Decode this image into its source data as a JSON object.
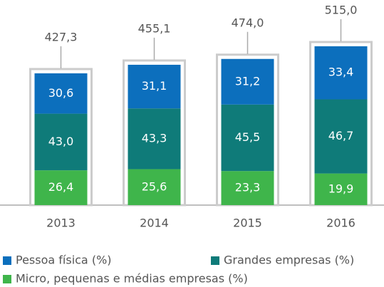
{
  "chart_data": {
    "type": "stacked-percent-bar",
    "categories": [
      "2013",
      "2014",
      "2015",
      "2016"
    ],
    "totals": [
      427.3,
      455.1,
      474.0,
      515.0
    ],
    "total_labels": [
      "427,3",
      "455,1",
      "474,0",
      "515,0"
    ],
    "series": [
      {
        "name": "Pessoa física (%)",
        "color": "#0c6fbd",
        "values": [
          30.6,
          31.1,
          31.2,
          33.4
        ],
        "value_labels": [
          "30,6",
          "31,1",
          "31,2",
          "33,4"
        ]
      },
      {
        "name": "Grandes empresas (%)",
        "color": "#0f7b79",
        "values": [
          43.0,
          43.3,
          45.5,
          46.7
        ],
        "value_labels": [
          "43,0",
          "43,3",
          "45,5",
          "46,7"
        ]
      },
      {
        "name": "Micro, pequenas e médias empresas (%)",
        "color": "#3fb54b",
        "values": [
          26.4,
          25.6,
          23.3,
          19.9
        ],
        "value_labels": [
          "26,4",
          "25,6",
          "23,3",
          "19,9"
        ]
      }
    ]
  }
}
